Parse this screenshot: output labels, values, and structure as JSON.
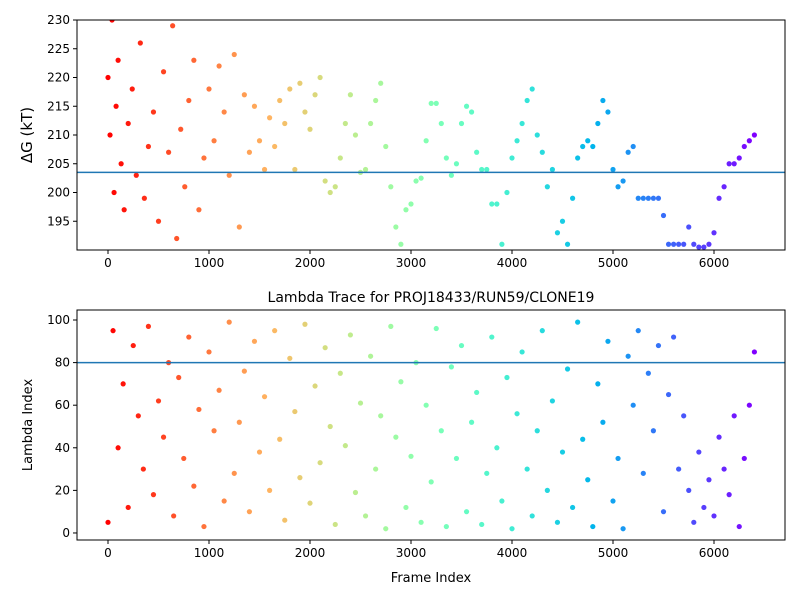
{
  "chart_data": [
    {
      "type": "scatter",
      "ylabel": "ΔG (kT)",
      "colormap": "rainbow_r",
      "hline": 203.5,
      "hline_color": "#1f77b4",
      "xlim": [
        -307,
        6703
      ],
      "ylim": [
        190,
        230
      ],
      "xticks": [
        0,
        1000,
        2000,
        3000,
        4000,
        5000,
        6000
      ],
      "yticks": [
        195,
        200,
        205,
        210,
        215,
        220,
        225,
        230
      ],
      "x": [
        0,
        20,
        40,
        60,
        80,
        100,
        130,
        160,
        200,
        240,
        280,
        320,
        360,
        400,
        450,
        500,
        550,
        600,
        640,
        680,
        720,
        760,
        800,
        850,
        900,
        950,
        1000,
        1050,
        1100,
        1150,
        1200,
        1250,
        1300,
        1350,
        1400,
        1450,
        1500,
        1550,
        1600,
        1650,
        1700,
        1750,
        1800,
        1850,
        1900,
        1950,
        2000,
        2050,
        2100,
        2150,
        2200,
        2250,
        2300,
        2350,
        2400,
        2450,
        2500,
        2550,
        2600,
        2650,
        2700,
        2750,
        2800,
        2850,
        2900,
        2950,
        3000,
        3050,
        3100,
        3150,
        3200,
        3250,
        3300,
        3350,
        3400,
        3450,
        3500,
        3550,
        3600,
        3650,
        3700,
        3750,
        3800,
        3850,
        3900,
        3950,
        4000,
        4050,
        4100,
        4150,
        4200,
        4250,
        4300,
        4350,
        4400,
        4450,
        4500,
        4550,
        4600,
        4650,
        4700,
        4750,
        4800,
        4850,
        4900,
        4950,
        5000,
        5050,
        5100,
        5150,
        5200,
        5250,
        5300,
        5350,
        5400,
        5450,
        5500,
        5550,
        5600,
        5650,
        5700,
        5750,
        5800,
        5850,
        5900,
        5950,
        6000,
        6050,
        6100,
        6150,
        6200,
        6250,
        6300,
        6350,
        6400
      ],
      "values": [
        220,
        210,
        230,
        200,
        215,
        223,
        205,
        197,
        212,
        218,
        203,
        226,
        199,
        208,
        214,
        195,
        221,
        207,
        229,
        192,
        211,
        201,
        216,
        223,
        197,
        206,
        218,
        209,
        222,
        214,
        203,
        224,
        194,
        217,
        207,
        215,
        209,
        204,
        213,
        208,
        216,
        212,
        218,
        204,
        219,
        214,
        211,
        217,
        220,
        202,
        200,
        201,
        206,
        212,
        217,
        210,
        203.5,
        204,
        212,
        216,
        219,
        208,
        201,
        194,
        191,
        197,
        198,
        202,
        202.5,
        209,
        215.5,
        215.5,
        212,
        206,
        203,
        205,
        212,
        215,
        214,
        207,
        204,
        204,
        198,
        198,
        191,
        200,
        206,
        209,
        212,
        216,
        218,
        210,
        207,
        201,
        204,
        193,
        195,
        191,
        199,
        206,
        208,
        209,
        208,
        212,
        216,
        214,
        204,
        201,
        202,
        207,
        208,
        199,
        199,
        199,
        199,
        199,
        196,
        191,
        191,
        191,
        191,
        194,
        191,
        190.5,
        190.5,
        191,
        193,
        199,
        201,
        205,
        205,
        206,
        208,
        209,
        210
      ]
    },
    {
      "type": "scatter",
      "title": "Lambda Trace for PROJ18433/RUN59/CLONE19",
      "xlabel": "Frame Index",
      "ylabel": "Lambda Index",
      "colormap": "rainbow_r",
      "hline": 80,
      "hline_color": "#1f77b4",
      "xlim": [
        -307,
        6703
      ],
      "ylim": [
        -3.3,
        104.7
      ],
      "xticks": [
        0,
        1000,
        2000,
        3000,
        4000,
        5000,
        6000
      ],
      "yticks": [
        0,
        20,
        40,
        60,
        80,
        100
      ],
      "x": [
        0,
        50,
        100,
        150,
        200,
        250,
        300,
        350,
        400,
        450,
        500,
        550,
        600,
        650,
        700,
        750,
        800,
        850,
        900,
        950,
        1000,
        1050,
        1100,
        1150,
        1200,
        1250,
        1300,
        1350,
        1400,
        1450,
        1500,
        1550,
        1600,
        1650,
        1700,
        1750,
        1800,
        1850,
        1900,
        1950,
        2000,
        2050,
        2100,
        2150,
        2200,
        2250,
        2300,
        2350,
        2400,
        2450,
        2500,
        2550,
        2600,
        2650,
        2700,
        2750,
        2800,
        2850,
        2900,
        2950,
        3000,
        3050,
        3100,
        3150,
        3200,
        3250,
        3300,
        3350,
        3400,
        3450,
        3500,
        3550,
        3600,
        3650,
        3700,
        3750,
        3800,
        3850,
        3900,
        3950,
        4000,
        4050,
        4100,
        4150,
        4200,
        4250,
        4300,
        4350,
        4400,
        4450,
        4500,
        4550,
        4600,
        4650,
        4700,
        4750,
        4800,
        4850,
        4900,
        4950,
        5000,
        5050,
        5100,
        5150,
        5200,
        5250,
        5300,
        5350,
        5400,
        5450,
        5500,
        5550,
        5600,
        5650,
        5700,
        5750,
        5800,
        5850,
        5900,
        5950,
        6000,
        6050,
        6100,
        6150,
        6200,
        6250,
        6300,
        6350,
        6400
      ],
      "values": [
        5,
        95,
        40,
        70,
        12,
        88,
        55,
        30,
        97,
        18,
        62,
        45,
        80,
        8,
        73,
        35,
        92,
        22,
        58,
        3,
        85,
        48,
        67,
        15,
        99,
        28,
        52,
        76,
        10,
        90,
        38,
        64,
        20,
        95,
        44,
        6,
        82,
        57,
        26,
        98,
        14,
        69,
        33,
        87,
        50,
        4,
        75,
        41,
        93,
        19,
        61,
        8,
        83,
        30,
        55,
        2,
        97,
        45,
        71,
        12,
        36,
        80,
        5,
        60,
        24,
        96,
        48,
        3,
        78,
        35,
        88,
        10,
        52,
        66,
        4,
        28,
        92,
        40,
        15,
        73,
        2,
        56,
        85,
        30,
        8,
        48,
        95,
        20,
        62,
        5,
        38,
        77,
        12,
        99,
        44,
        25,
        3,
        70,
        52,
        90,
        15,
        35,
        2,
        83,
        60,
        95,
        28,
        75,
        48,
        88,
        10,
        65,
        92,
        30,
        55,
        20,
        5,
        38,
        12,
        25,
        8,
        45,
        30,
        18,
        55,
        3,
        35,
        60,
        85
      ]
    }
  ]
}
